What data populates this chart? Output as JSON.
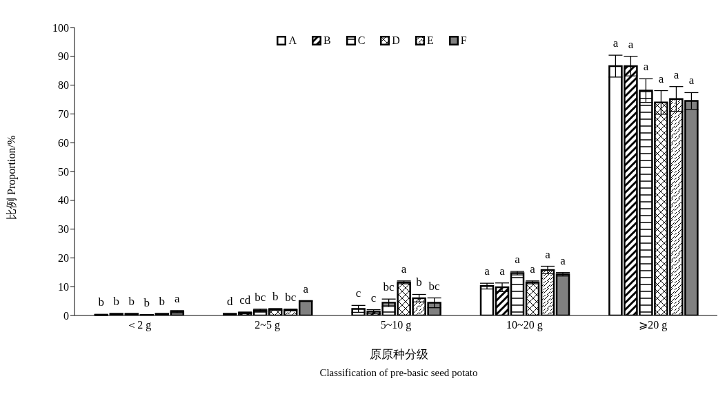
{
  "chart_data": {
    "type": "bar",
    "xlabel": "原原种分级\nClassification of pre-basic seed potato",
    "ylabel": "比例 Proportion/%",
    "categories": [
      "＜2 g",
      "2~5 g",
      "5~10 g",
      "10~20 g",
      "⩾20 g"
    ],
    "series": [
      {
        "name": "A",
        "color": "#ffffff",
        "values": [
          0.2,
          0.5,
          2.3,
          10.2,
          86.6
        ],
        "errors": [
          0.2,
          0.2,
          1.2,
          1.0,
          3.8
        ],
        "value_labels": [
          "b",
          "d",
          "c",
          "a",
          "a"
        ]
      },
      {
        "name": "B",
        "color": "#000000",
        "values": [
          0.5,
          0.9,
          1.3,
          9.8,
          86.6
        ],
        "errors": [
          0.2,
          0.3,
          0.7,
          1.5,
          3.4
        ],
        "value_labels": [
          "b",
          "cd",
          "c",
          "a",
          "a"
        ]
      },
      {
        "name": "C",
        "color": "#000000",
        "values": [
          0.5,
          1.8,
          4.4,
          14.7,
          78.1
        ],
        "errors": [
          0.2,
          0.4,
          1.3,
          0.6,
          4.1
        ],
        "value_labels": [
          "b",
          "bc",
          "bc",
          "a",
          "a"
        ]
      },
      {
        "name": "D",
        "color": "#000000",
        "values": [
          0.2,
          2.1,
          11.5,
          11.5,
          74.0
        ],
        "errors": [
          0.1,
          0.3,
          0.5,
          0.5,
          4.1
        ],
        "value_labels": [
          "b",
          "b",
          "a",
          "a",
          "a"
        ]
      },
      {
        "name": "E",
        "color": "#000000",
        "values": [
          0.5,
          1.9,
          6.0,
          15.8,
          75.2
        ],
        "errors": [
          0.2,
          0.3,
          1.3,
          1.3,
          4.3
        ],
        "value_labels": [
          "b",
          "bc",
          "b",
          "a",
          "a"
        ]
      },
      {
        "name": "F",
        "color": "#808080",
        "values": [
          1.3,
          5.0,
          4.4,
          14.3,
          74.5
        ],
        "errors": [
          0.4,
          0.1,
          1.7,
          0.6,
          2.9
        ],
        "value_labels": [
          "a",
          "a",
          "bc",
          "a",
          "a"
        ]
      }
    ],
    "ylim": [
      0,
      100
    ],
    "yticks": [
      0,
      10,
      20,
      30,
      40,
      50,
      60,
      70,
      80,
      90,
      100
    ],
    "grid": false,
    "legend": "top"
  }
}
